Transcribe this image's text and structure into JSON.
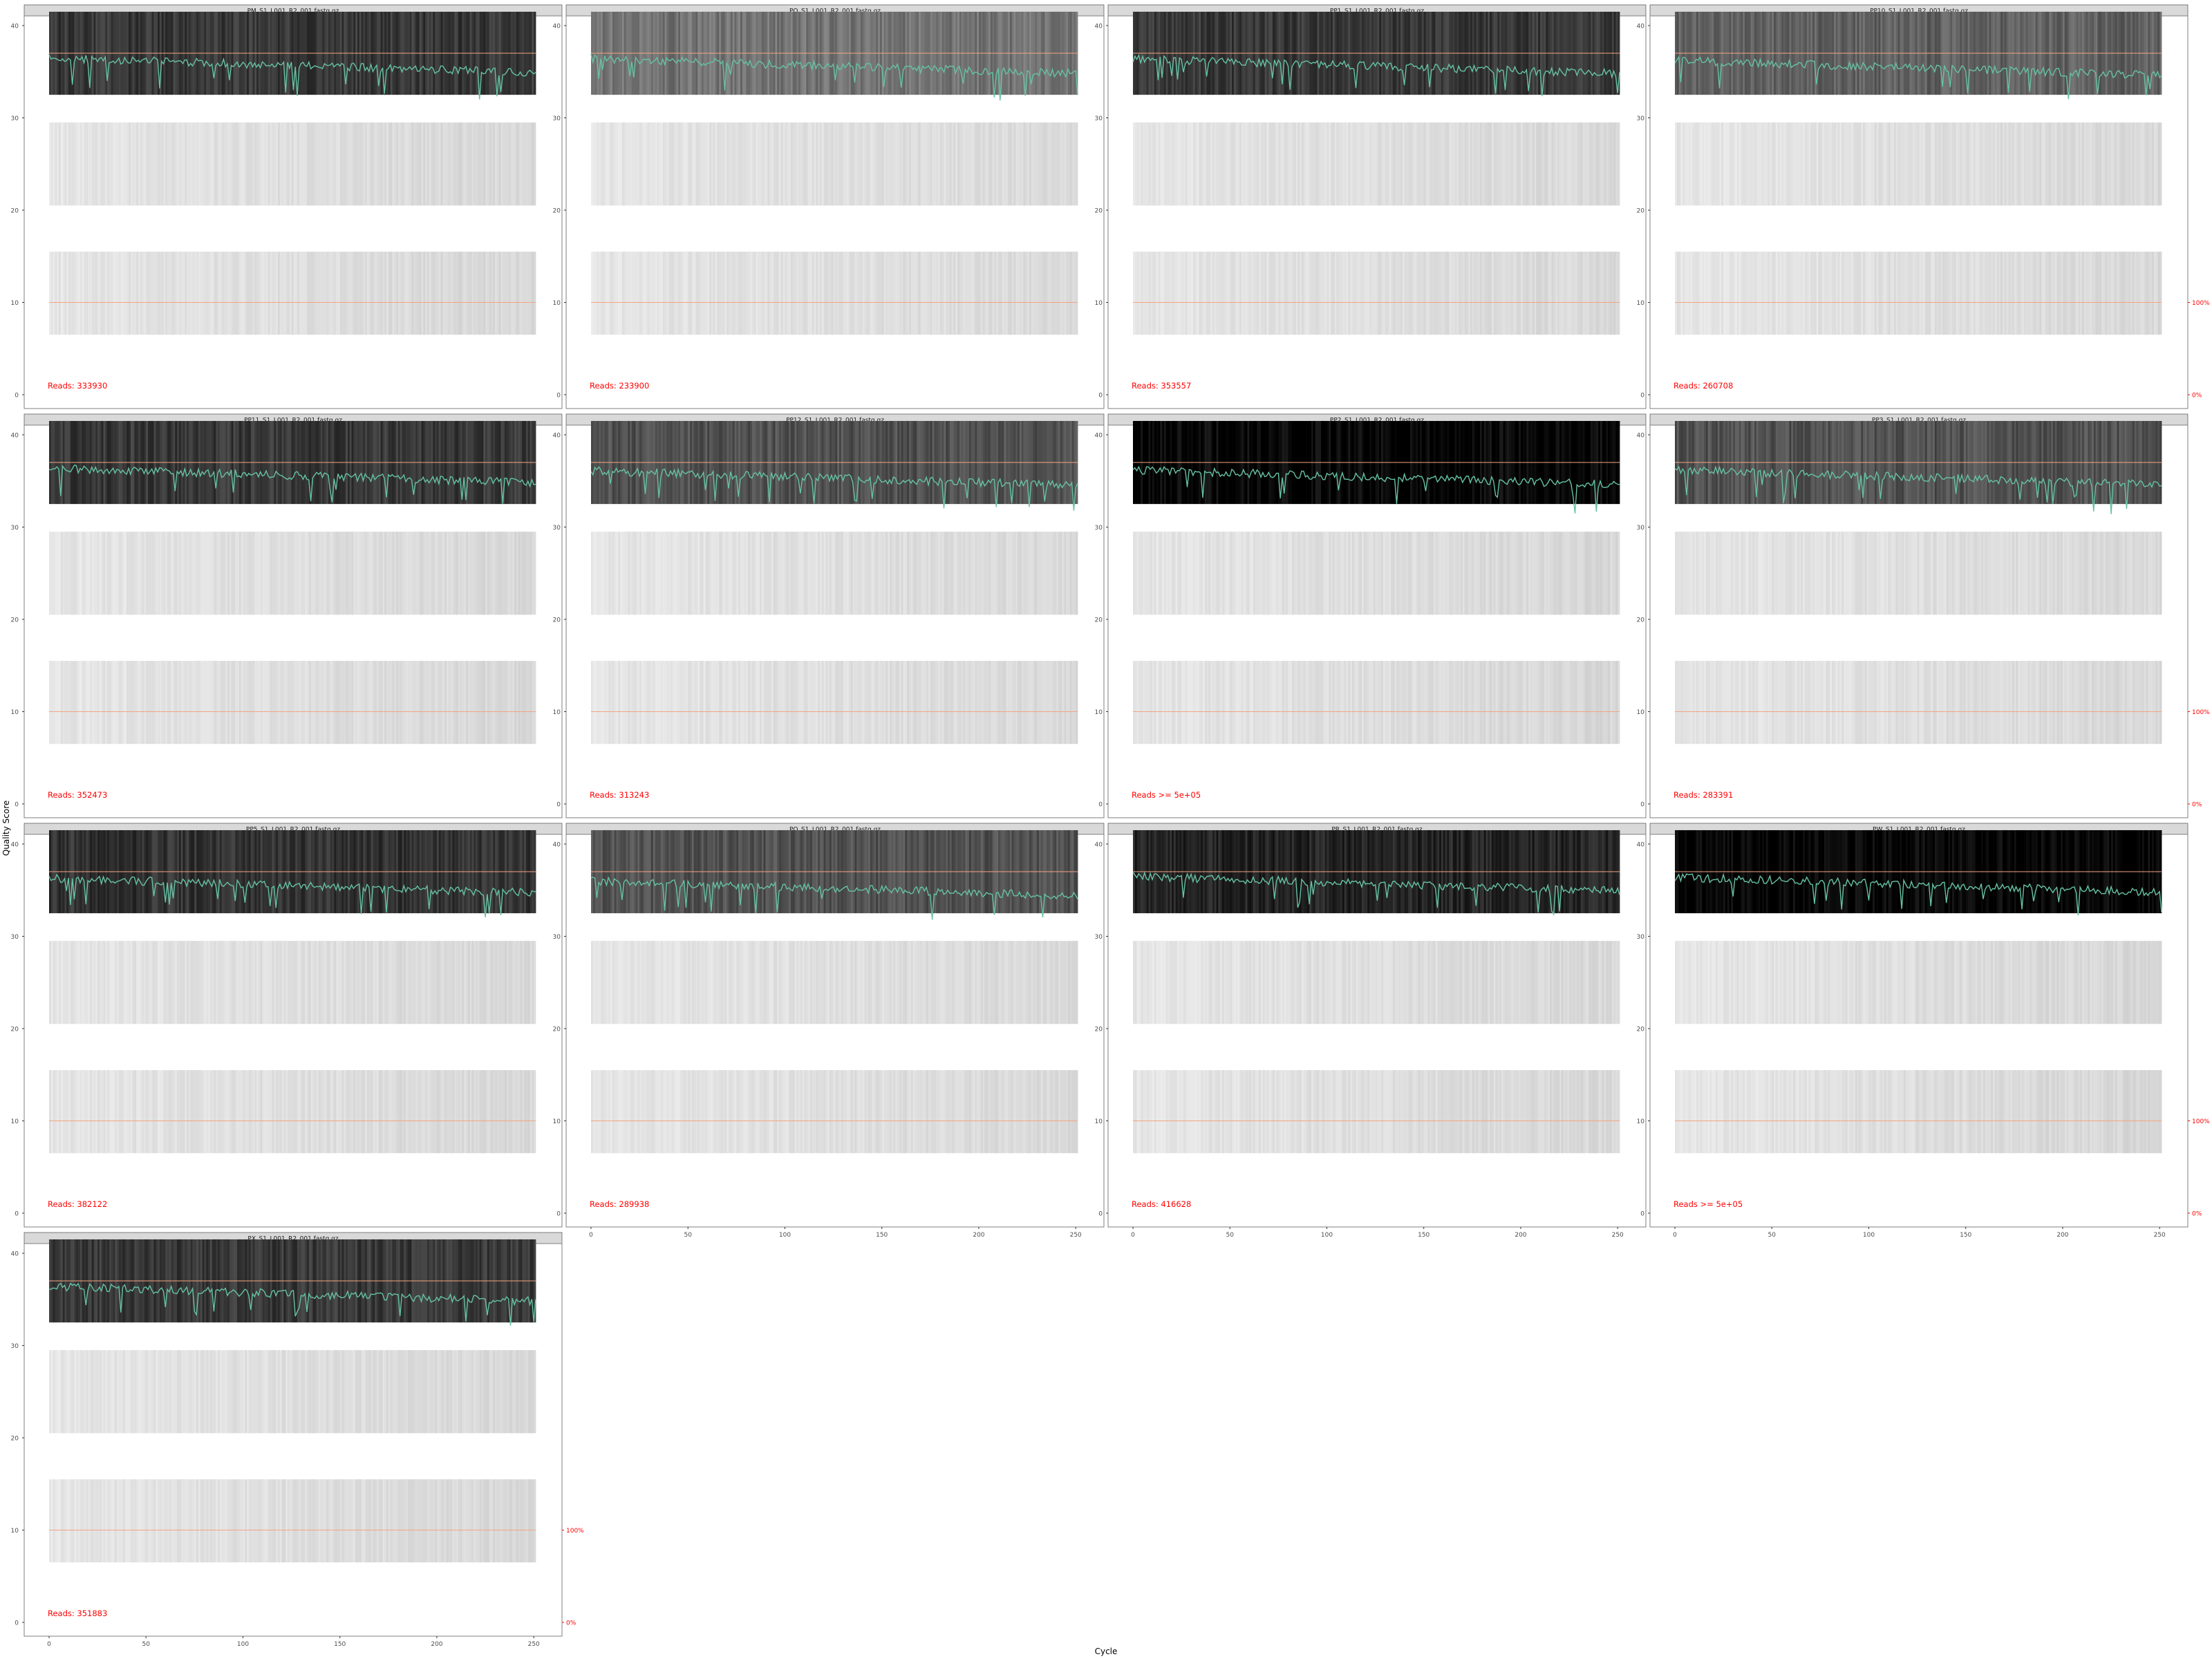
{
  "chart_data": {
    "type": "heatmap",
    "description_style": "faceted quality-score profile (plotQualityProfile)",
    "xlabel": "Cycle",
    "ylabel": "Quality Score",
    "xlim": [
      0,
      251
    ],
    "ylim": [
      0,
      42
    ],
    "x_ticks": [
      "0",
      "50",
      "100",
      "150",
      "200",
      "250"
    ],
    "y_ticks": [
      "0",
      "10",
      "20",
      "30",
      "40"
    ],
    "right_axis_ticks": [
      "100%",
      "0%"
    ],
    "grid": false,
    "colors": {
      "mean_line": "#66c2a5",
      "reads_label": "#ff0000",
      "reference_line": "#f4a582",
      "strip_background": "#d9d9d9",
      "panel_border": "#7f7f7f"
    },
    "band_centers": [
      37,
      25,
      11
    ],
    "band_half_height": 4.5,
    "reference_lines": [
      37,
      10
    ],
    "panels": [
      {
        "title": "PM_S1_L001_R2_001.fastq.gz",
        "reads_label": "Reads:  333930",
        "top_shade": 0.78,
        "mean_quality": 36.1,
        "right_axis": false,
        "x_axis": false
      },
      {
        "title": "PO_S1_L001_R2_001.fastq.gz",
        "reads_label": "Reads:  233900",
        "top_shade": 0.55,
        "mean_quality": 36.0,
        "right_axis": false,
        "x_axis": false
      },
      {
        "title": "PP1_S1_L001_R2_001.fastq.gz",
        "reads_label": "Reads:  353557",
        "top_shade": 0.78,
        "mean_quality": 36.0,
        "right_axis": false,
        "x_axis": false
      },
      {
        "title": "PP10_S1_L001_R2_001.fastq.gz",
        "reads_label": "Reads:  260708",
        "top_shade": 0.62,
        "mean_quality": 35.8,
        "right_axis": true,
        "x_axis": false
      },
      {
        "title": "PP11_S1_L001_R2_001.fastq.gz",
        "reads_label": "Reads:  352473",
        "top_shade": 0.78,
        "mean_quality": 36.0,
        "right_axis": false,
        "x_axis": false
      },
      {
        "title": "PP12_S1_L001_R2_001.fastq.gz",
        "reads_label": "Reads:  313243",
        "top_shade": 0.68,
        "mean_quality": 35.7,
        "right_axis": false,
        "x_axis": false
      },
      {
        "title": "PP2_S1_L001_R2_001.fastq.gz",
        "reads_label": "Reads >=  5e+05",
        "top_shade": 0.97,
        "mean_quality": 35.8,
        "right_axis": false,
        "x_axis": false
      },
      {
        "title": "PP3_S1_L001_R2_001.fastq.gz",
        "reads_label": "Reads:  283391",
        "top_shade": 0.68,
        "mean_quality": 35.8,
        "right_axis": true,
        "x_axis": false
      },
      {
        "title": "PP5_S1_L001_R2_001.fastq.gz",
        "reads_label": "Reads:  382122",
        "top_shade": 0.8,
        "mean_quality": 35.9,
        "right_axis": false,
        "x_axis": false
      },
      {
        "title": "PQ_S1_L001_R2_001.fastq.gz",
        "reads_label": "Reads:  289938",
        "top_shade": 0.68,
        "mean_quality": 35.6,
        "right_axis": false,
        "x_axis": true
      },
      {
        "title": "PR_S1_L001_R2_001.fastq.gz",
        "reads_label": "Reads:  416628",
        "top_shade": 0.86,
        "mean_quality": 36.1,
        "right_axis": false,
        "x_axis": true
      },
      {
        "title": "PW_S1_L001_R2_001.fastq.gz",
        "reads_label": "Reads >=  5e+05",
        "top_shade": 0.98,
        "mean_quality": 36.0,
        "right_axis": true,
        "x_axis": true
      },
      {
        "title": "PX_S1_L001_R2_001.fastq.gz",
        "reads_label": "Reads:  351883",
        "top_shade": 0.78,
        "mean_quality": 36.0,
        "right_axis": true,
        "x_axis": true
      }
    ]
  }
}
